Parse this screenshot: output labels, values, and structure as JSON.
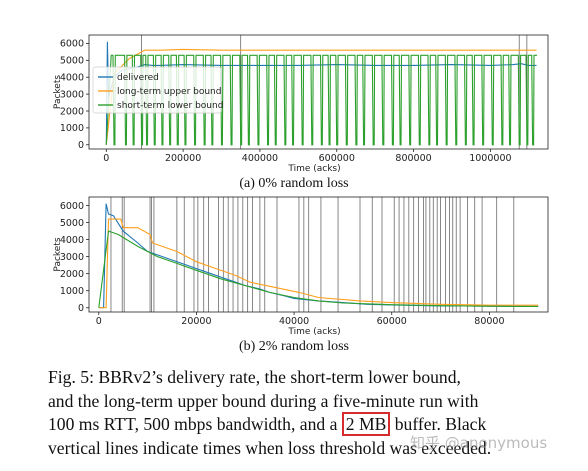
{
  "chart_data": [
    {
      "type": "line",
      "caption": "(a) 0% random loss",
      "xlabel": "Time (acks)",
      "ylabel": "Packets",
      "xlim": [
        -45000,
        1150000
      ],
      "ylim": [
        -250,
        6500
      ],
      "xticks": [
        0,
        200000,
        400000,
        600000,
        800000,
        1000000
      ],
      "xtick_labels": [
        "0",
        "200000",
        "400000",
        "600000",
        "800000",
        "1000000"
      ],
      "yticks": [
        0,
        1000,
        2000,
        3000,
        4000,
        5000,
        6000
      ],
      "ytick_labels": [
        "0",
        "1000",
        "2000",
        "3000",
        "4000",
        "5000",
        "6000"
      ],
      "legend_position": "upper-left",
      "loss_threshold_lines": [
        92000,
        350000,
        1075000,
        1095000
      ],
      "series": [
        {
          "name": "delivered",
          "color": "#1f77b4",
          "x": [
            0,
            3000,
            6000,
            20000,
            40000,
            80000,
            100000,
            120000,
            140000,
            200000,
            300000,
            400000,
            500000,
            600000,
            700000,
            800000,
            900000,
            1000000,
            1060000,
            1080000,
            1100000,
            1120000
          ],
          "y": [
            0,
            6100,
            2800,
            4000,
            4400,
            4600,
            4750,
            4700,
            4700,
            4750,
            4700,
            4700,
            4700,
            4750,
            4700,
            4700,
            4750,
            4700,
            4750,
            4800,
            4700,
            4700
          ]
        },
        {
          "name": "long-term upper bound",
          "color": "#ff9f1c",
          "x": [
            0,
            20000,
            60000,
            100000,
            140000,
            200000,
            300000,
            400000,
            500000,
            600000,
            700000,
            800000,
            900000,
            1000000,
            1100000,
            1120000
          ],
          "y": [
            0,
            4200,
            5100,
            5600,
            5600,
            5650,
            5600,
            5600,
            5600,
            5600,
            5600,
            5600,
            5600,
            5600,
            5600,
            5600
          ]
        },
        {
          "name": "short-term lower bound",
          "color": "#2ca02c",
          "baseline": 5300,
          "drop_to": 0,
          "drop_times": [
            20000,
            50000,
            70000,
            92000,
            105000,
            125000,
            145000,
            165000,
            185000,
            205000,
            230000,
            255000,
            275000,
            300000,
            325000,
            350000,
            370000,
            395000,
            420000,
            440000,
            465000,
            485000,
            510000,
            535000,
            560000,
            580000,
            600000,
            625000,
            650000,
            670000,
            695000,
            720000,
            745000,
            765000,
            790000,
            815000,
            840000,
            860000,
            885000,
            910000,
            935000,
            955000,
            980000,
            1005000,
            1030000,
            1050000,
            1075000,
            1095000,
            1110000
          ]
        }
      ]
    },
    {
      "type": "line",
      "caption": "(b) 2% random loss",
      "xlabel": "Time (acks)",
      "ylabel": "Packets",
      "xlim": [
        -2000,
        92000
      ],
      "ylim": [
        -250,
        6500
      ],
      "xticks": [
        0,
        20000,
        40000,
        60000,
        80000
      ],
      "xtick_labels": [
        "0",
        "20000",
        "40000",
        "60000",
        "80000"
      ],
      "yticks": [
        0,
        1000,
        2000,
        3000,
        4000,
        5000,
        6000
      ],
      "ytick_labels": [
        "0",
        "1000",
        "2000",
        "3000",
        "4000",
        "5000",
        "6000"
      ],
      "loss_threshold_lines": [
        2500,
        4800,
        5200,
        10500,
        10800,
        11300,
        16000,
        17500,
        19500,
        20300,
        21500,
        22500,
        24500,
        25500,
        26500,
        27500,
        28500,
        29500,
        30500,
        31500,
        33000,
        34000,
        36500,
        41000,
        42000,
        43000,
        45500,
        49000,
        53500,
        56000,
        58000,
        60500,
        61500,
        62500,
        63500,
        64500,
        65500,
        66500,
        67000,
        67800,
        68500,
        69300,
        70000,
        71000,
        71800,
        72500,
        73200,
        74000,
        75500,
        77000,
        78500,
        81500,
        85000
      ],
      "series": [
        {
          "name": "delivered",
          "color": "#1f77b4",
          "x": [
            0,
            1000,
            1500,
            2000,
            3000,
            5000,
            8000,
            10000,
            12000,
            15000,
            18000,
            20000,
            23000,
            25000,
            28000,
            30000,
            33000,
            35000,
            38000,
            40000,
            45000,
            50000,
            55000,
            60000,
            65000,
            70000,
            75000,
            80000,
            85000,
            90000
          ],
          "y": [
            0,
            0,
            6100,
            5500,
            5400,
            4500,
            3800,
            3300,
            3100,
            2800,
            2500,
            2300,
            2000,
            1800,
            1500,
            1300,
            1100,
            900,
            700,
            550,
            400,
            300,
            200,
            160,
            130,
            110,
            100,
            90,
            80,
            80
          ]
        },
        {
          "name": "long-term upper bound",
          "color": "#ff9f1c",
          "x": [
            0,
            1500,
            2000,
            4500,
            5000,
            8000,
            10500,
            11000,
            16000,
            18000,
            20000,
            24000,
            28000,
            31000,
            36000,
            41000,
            45000,
            53500,
            60000,
            70000,
            80000,
            90000
          ],
          "y": [
            0,
            0,
            5200,
            5200,
            4700,
            4700,
            4300,
            3800,
            3300,
            3000,
            2700,
            2300,
            1900,
            1500,
            1200,
            900,
            600,
            400,
            300,
            200,
            150,
            150
          ]
        },
        {
          "name": "short-term lower bound",
          "color": "#2ca02c",
          "x": [
            0,
            2000,
            4000,
            8000,
            12000,
            16000,
            20000,
            25000,
            30000,
            35000,
            40000,
            45000,
            50000,
            60000,
            70000,
            80000,
            90000
          ],
          "y": [
            0,
            4500,
            4300,
            3600,
            3000,
            2600,
            2200,
            1700,
            1300,
            900,
            600,
            400,
            280,
            180,
            120,
            90,
            80
          ]
        }
      ]
    }
  ],
  "caption_lines": [
    "Fig. 5: BBRv2’s delivery rate, the short-term lower bound,",
    "and the long-term upper bound during a five-minute run with",
    "vertical lines indicate times when loss threshold was exceeded."
  ],
  "caption_line3": {
    "before": "100 ms RTT, 500 mbps bandwidth, and a ",
    "highlight": "2 MB",
    "after": " buffer. Black"
  },
  "highlight_color": "#d62c2c",
  "watermark": "知乎 @anonymous"
}
